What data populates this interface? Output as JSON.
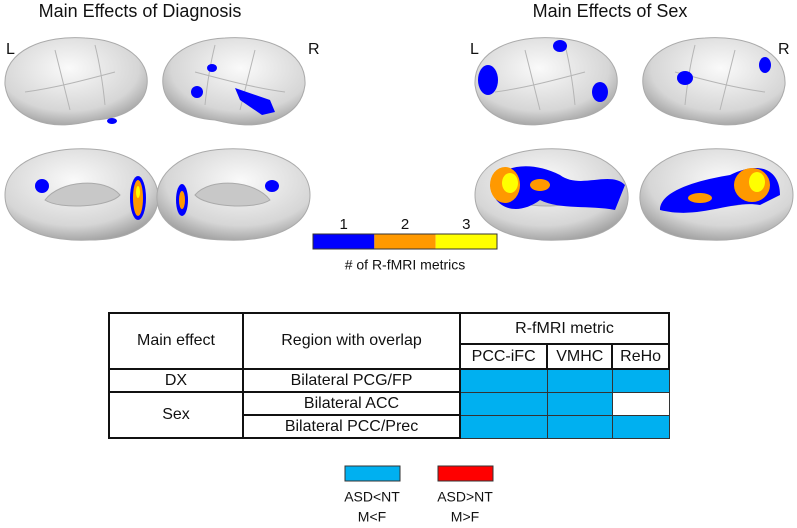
{
  "panels": [
    {
      "title": "Main Effects of Diagnosis",
      "left_label": "L",
      "right_label": "R"
    },
    {
      "title": "Main Effects of Sex",
      "left_label": "L",
      "right_label": "R"
    }
  ],
  "colorbar": {
    "ticks": [
      {
        "label": "1",
        "color": "#0000ff"
      },
      {
        "label": "2",
        "color": "#ff9900"
      },
      {
        "label": "3",
        "color": "#ffff00"
      }
    ],
    "label": "# of R-fMRI metrics"
  },
  "table": {
    "headers": [
      "Main effect",
      "Region with overlap",
      "R-fMRI metric"
    ],
    "metrics": [
      "PCC-iFC",
      "VMHC",
      "ReHo"
    ],
    "groups": [
      {
        "effect": "DX",
        "rows": [
          {
            "region": "Bilateral PCG/FP",
            "fills": [
              "#00b0f0",
              "#00b0f0",
              "#00b0f0"
            ]
          }
        ]
      },
      {
        "effect": "Sex",
        "rows": [
          {
            "region": "Bilateral ACC",
            "fills": [
              "#00b0f0",
              "#00b0f0",
              "#ffffff"
            ]
          },
          {
            "region": "Bilateral PCC/Prec",
            "fills": [
              "#00b0f0",
              "#00b0f0",
              "#00b0f0"
            ]
          }
        ]
      }
    ]
  },
  "legend": [
    {
      "color": "#00b0f0",
      "labels": [
        "ASD<NT",
        "M<F"
      ]
    },
    {
      "color": "#ff0000",
      "labels": [
        "ASD>NT",
        "M>F"
      ]
    }
  ]
}
